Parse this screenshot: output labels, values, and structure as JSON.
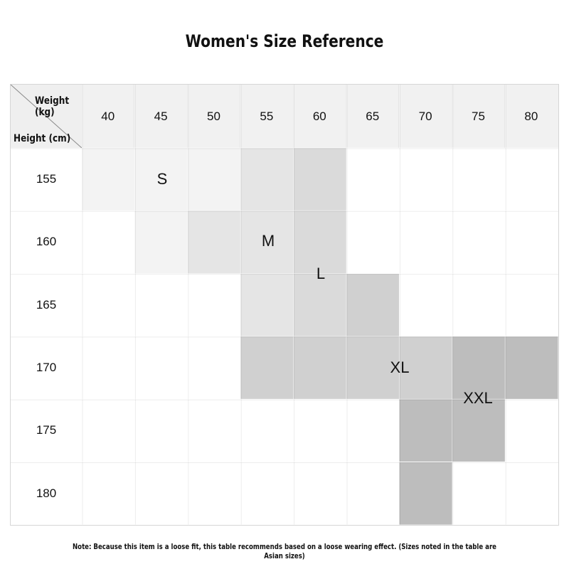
{
  "title": "Women's Size Reference",
  "corner": {
    "weight_label": "Weight (kg)",
    "height_label": "Height (cm)"
  },
  "weights": [
    "40",
    "45",
    "50",
    "55",
    "60",
    "65",
    "70",
    "75",
    "80"
  ],
  "heights": [
    "155",
    "160",
    "165",
    "170",
    "175",
    "180"
  ],
  "sizes": [
    {
      "label": "S",
      "color": "#f3f3f3",
      "cells": [
        [
          0,
          0
        ],
        [
          0,
          1
        ],
        [
          0,
          2
        ],
        [
          1,
          1
        ]
      ]
    },
    {
      "label": "M",
      "color": "#e5e5e5",
      "cells": [
        [
          0,
          3
        ],
        [
          1,
          2
        ],
        [
          1,
          3
        ],
        [
          2,
          3
        ]
      ]
    },
    {
      "label": "L",
      "color": "#dadada",
      "cells": [
        [
          0,
          4
        ],
        [
          1,
          4
        ],
        [
          2,
          4
        ]
      ]
    },
    {
      "label": "XL",
      "color": "#d0d0d0",
      "cells": [
        [
          2,
          5
        ],
        [
          3,
          3
        ],
        [
          3,
          4
        ],
        [
          3,
          5
        ],
        [
          3,
          6
        ]
      ]
    },
    {
      "label": "XXL",
      "color": "#bdbdbd",
      "cells": [
        [
          3,
          7
        ],
        [
          3,
          8
        ],
        [
          4,
          6
        ],
        [
          4,
          7
        ],
        [
          5,
          6
        ]
      ]
    }
  ],
  "note": "Note: Because this item is a loose fit, this table recommends based on a loose wearing effect. (Sizes noted in the table are Asian sizes)"
}
